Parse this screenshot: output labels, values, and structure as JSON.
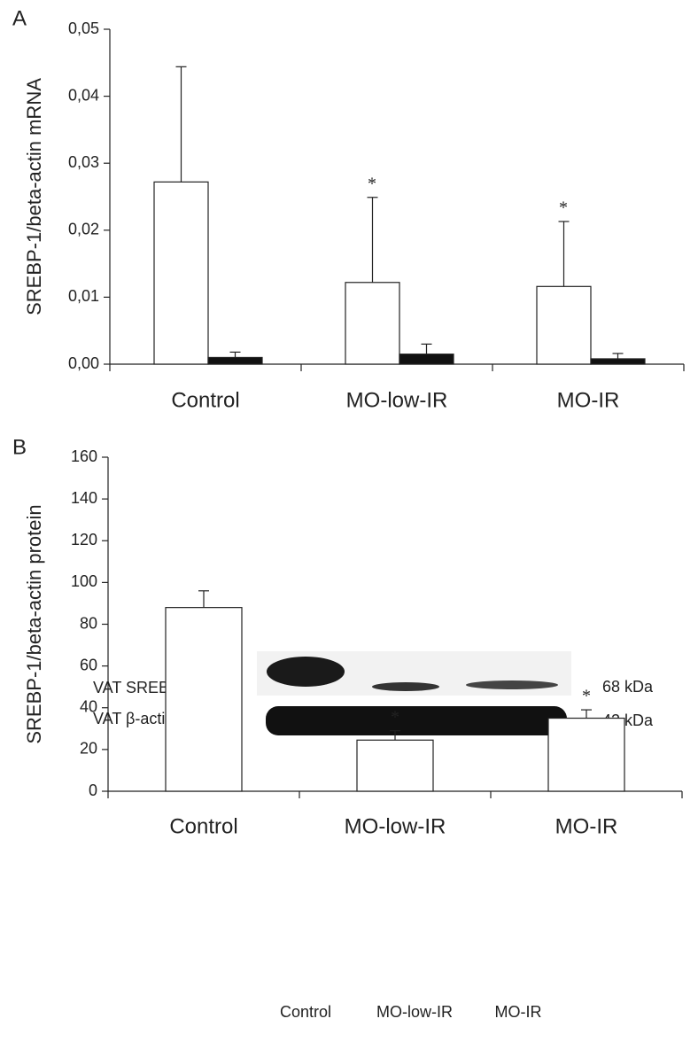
{
  "chart_data": [
    {
      "type": "bar",
      "panel_label": "A",
      "ylabel": "SREBP-1/beta-actin mRNA",
      "categories": [
        "Control",
        "MO-low-IR",
        "MO-IR"
      ],
      "series": [
        {
          "color": "#ffffff",
          "values": [
            0.0272,
            0.0122,
            0.0116
          ],
          "errors": [
            0.0172,
            0.0127,
            0.0097
          ]
        },
        {
          "color": "#111111",
          "values": [
            0.001,
            0.0015,
            0.0008
          ],
          "errors": [
            0.0008,
            0.0015,
            0.0008
          ]
        }
      ],
      "annotations": [
        {
          "category": "MO-low-IR",
          "text": "*"
        },
        {
          "category": "MO-IR",
          "text": "*"
        }
      ],
      "ylim": [
        0,
        0.05
      ],
      "yticks": [
        {
          "value": 0,
          "label": "0,00"
        },
        {
          "value": 0.01,
          "label": "0,01"
        },
        {
          "value": 0.02,
          "label": "0,02"
        },
        {
          "value": 0.03,
          "label": "0,03"
        },
        {
          "value": 0.04,
          "label": "0,04"
        },
        {
          "value": 0.05,
          "label": "0,05"
        }
      ],
      "grid": false
    },
    {
      "type": "bar",
      "panel_label": "B",
      "ylabel": "SREBP-1/beta-actin protein",
      "categories": [
        "Control",
        "MO-low-IR",
        "MO-IR"
      ],
      "series": [
        {
          "color": "#ffffff",
          "values": [
            88,
            24.5,
            35
          ],
          "errors": [
            8,
            4.5,
            4
          ]
        }
      ],
      "annotations": [
        {
          "category": "MO-low-IR",
          "text": "*"
        },
        {
          "category": "MO-IR",
          "text": "*"
        }
      ],
      "ylim": [
        0,
        160
      ],
      "yticks": [
        0,
        20,
        40,
        60,
        80,
        100,
        120,
        140,
        160
      ],
      "grid": false
    }
  ],
  "blot": {
    "rows": [
      {
        "label": "VAT SREBP-1",
        "size": "68 kDa"
      },
      {
        "label": "VAT β-actin",
        "size": "42 kDa"
      }
    ],
    "lanes": [
      "Control",
      "MO-low-IR",
      "MO-IR"
    ]
  }
}
